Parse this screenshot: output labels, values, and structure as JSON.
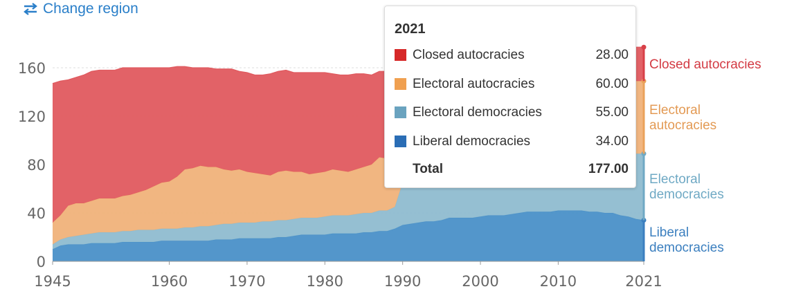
{
  "controls": {
    "change_region_label": "Change region",
    "change_region_icon": "swap-arrows-icon"
  },
  "colors": {
    "closed_autocracies": "#e05a5f",
    "electoral_autocracies": "#f0b27a",
    "electoral_democracies": "#8fbcd0",
    "liberal_democracies": "#4a90c8"
  },
  "chart_data": {
    "type": "area",
    "stacked": true,
    "ylim": [
      0,
      180
    ],
    "xlim": [
      1945,
      2021
    ],
    "yticks": [
      "0",
      "40",
      "80",
      "120",
      "160"
    ],
    "xticks": [
      "1945",
      "1960",
      "1970",
      "1980",
      "1990",
      "2000",
      "2010",
      "2021"
    ],
    "gridlines": true,
    "x": [
      1945,
      1946,
      1947,
      1948,
      1949,
      1950,
      1951,
      1952,
      1953,
      1954,
      1955,
      1956,
      1957,
      1958,
      1959,
      1960,
      1961,
      1962,
      1963,
      1964,
      1965,
      1966,
      1967,
      1968,
      1969,
      1970,
      1971,
      1972,
      1973,
      1974,
      1975,
      1976,
      1977,
      1978,
      1979,
      1980,
      1981,
      1982,
      1983,
      1984,
      1985,
      1986,
      1987,
      1988,
      1989,
      1990,
      1991,
      1992,
      1993,
      1994,
      1995,
      1996,
      1997,
      1998,
      1999,
      2000,
      2001,
      2002,
      2003,
      2004,
      2005,
      2006,
      2007,
      2008,
      2009,
      2010,
      2011,
      2012,
      2013,
      2014,
      2015,
      2016,
      2017,
      2018,
      2019,
      2020,
      2021
    ],
    "series": [
      {
        "name": "Liberal democracies",
        "label_lines": [
          "Liberal",
          "democracies"
        ],
        "values": [
          10,
          13,
          14,
          14,
          14,
          15,
          15,
          15,
          15,
          16,
          16,
          16,
          16,
          16,
          17,
          17,
          17,
          17,
          17,
          17,
          17,
          18,
          18,
          18,
          19,
          19,
          19,
          19,
          19,
          20,
          20,
          21,
          22,
          22,
          22,
          22,
          23,
          23,
          23,
          23,
          24,
          24,
          25,
          25,
          27,
          30,
          31,
          32,
          33,
          33,
          34,
          36,
          36,
          36,
          36,
          37,
          38,
          38,
          38,
          39,
          40,
          41,
          41,
          41,
          41,
          42,
          42,
          42,
          42,
          41,
          41,
          40,
          40,
          38,
          37,
          35,
          34
        ]
      },
      {
        "name": "Electoral democracies",
        "label_lines": [
          "Electoral",
          "democracies"
        ],
        "values": [
          4,
          5,
          6,
          7,
          8,
          8,
          9,
          9,
          9,
          9,
          9,
          10,
          10,
          10,
          10,
          10,
          10,
          11,
          11,
          12,
          12,
          12,
          13,
          13,
          13,
          13,
          13,
          14,
          14,
          14,
          14,
          14,
          14,
          14,
          14,
          15,
          15,
          15,
          15,
          16,
          16,
          16,
          17,
          17,
          18,
          35,
          38,
          42,
          44,
          46,
          47,
          47,
          48,
          48,
          48,
          48,
          48,
          48,
          48,
          48,
          48,
          48,
          48,
          49,
          49,
          49,
          50,
          50,
          51,
          51,
          51,
          52,
          52,
          54,
          54,
          54,
          55
        ]
      },
      {
        "name": "Electoral autocracies",
        "label_lines": [
          "Electoral",
          "autocracies"
        ],
        "values": [
          18,
          20,
          26,
          27,
          26,
          27,
          28,
          28,
          28,
          29,
          30,
          31,
          33,
          36,
          38,
          39,
          43,
          48,
          49,
          50,
          49,
          48,
          45,
          44,
          44,
          42,
          41,
          39,
          38,
          40,
          41,
          39,
          38,
          36,
          37,
          37,
          38,
          37,
          36,
          37,
          38,
          40,
          44,
          43,
          39,
          45,
          48,
          52,
          52,
          52,
          51,
          53,
          53,
          54,
          54,
          54,
          55,
          55,
          55,
          55,
          55,
          55,
          55,
          55,
          55,
          55,
          55,
          55,
          55,
          55,
          56,
          57,
          57,
          58,
          59,
          60,
          60
        ]
      },
      {
        "name": "Closed autocracies",
        "label_lines": [
          "Closed autocracies"
        ],
        "values": [
          115,
          111,
          104,
          104,
          106,
          107,
          106,
          106,
          106,
          106,
          105,
          103,
          101,
          98,
          95,
          94,
          91,
          85,
          83,
          81,
          82,
          81,
          83,
          84,
          81,
          82,
          81,
          82,
          84,
          83,
          83,
          82,
          82,
          84,
          83,
          82,
          79,
          79,
          80,
          79,
          77,
          74,
          71,
          72,
          73,
          43,
          40,
          37,
          35,
          34,
          33,
          30,
          30,
          30,
          30,
          30,
          30,
          30,
          30,
          30,
          30,
          30,
          30,
          30,
          30,
          29,
          28,
          28,
          28,
          29,
          29,
          29,
          29,
          28,
          28,
          28,
          28
        ]
      }
    ]
  },
  "tooltip": {
    "year": "2021",
    "rows": [
      {
        "label": "Closed autocracies",
        "value": "28.00",
        "color": "#d62828"
      },
      {
        "label": "Electoral autocracies",
        "value": "60.00",
        "color": "#f0a050"
      },
      {
        "label": "Electoral democracies",
        "value": "55.00",
        "color": "#6aa3bf"
      },
      {
        "label": "Liberal democracies",
        "value": "34.00",
        "color": "#2a6db5"
      }
    ],
    "total_label": "Total",
    "total_value": "177.00"
  }
}
